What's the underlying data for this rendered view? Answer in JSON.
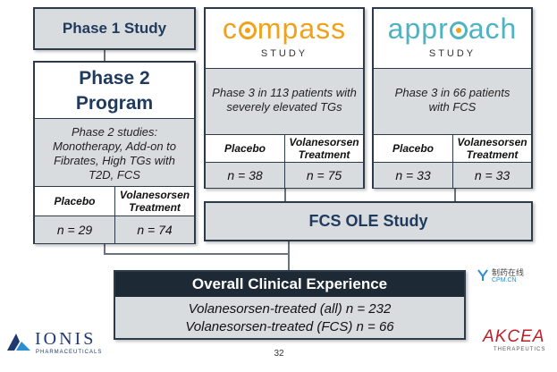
{
  "phase1": {
    "title": "Phase 1 Study"
  },
  "phase2": {
    "title_line1": "Phase 2",
    "title_line2": "Program",
    "description": "Phase 2 studies: Monotherapy, Add-on to Fibrates, High TGs with T2D, FCS",
    "placebo_label": "Placebo",
    "treatment_label": "Volanesorsen Treatment",
    "placebo_n": "n = 29",
    "treatment_n": "n = 74"
  },
  "compass": {
    "logo_prefix": "c",
    "logo_mid": "mpass",
    "logo_sub": "STUDY",
    "description": "Phase 3 in 113 patients with severely elevated TGs",
    "placebo_label": "Placebo",
    "treatment_label": "Volanesorsen Treatment",
    "placebo_n": "n = 38",
    "treatment_n": "n = 75"
  },
  "approach": {
    "logo_prefix": "appr",
    "logo_suffix": "ach",
    "logo_sub": "STUDY",
    "description": "Phase 3 in 66 patients with FCS",
    "placebo_label": "Placebo",
    "treatment_label": "Volanesorsen Treatment",
    "placebo_n": "n = 33",
    "treatment_n": "n = 33"
  },
  "ole": {
    "title": "FCS OLE Study"
  },
  "overall": {
    "title": "Overall Clinical Experience",
    "line1": "Volanesorsen-treated (all) n = 232",
    "line2": "Volanesorsen-treated (FCS) n = 66"
  },
  "watermark": {
    "cn": "制药在线",
    "site": "CPM.CN"
  },
  "ionis": {
    "name": "IONIS",
    "sub": "PHARMACEUTICALS"
  },
  "akcea": {
    "name": "AKCEA",
    "sub": "THERAPEUTICS"
  },
  "page_number": "32",
  "colors": {
    "navy": "#1f3a5c",
    "dark": "#1d2a36",
    "grey": "#d9dcdf",
    "compass_orange": "#f0a21a",
    "approach_teal": "#4fb3c4",
    "akcea_red": "#b8202a"
  }
}
